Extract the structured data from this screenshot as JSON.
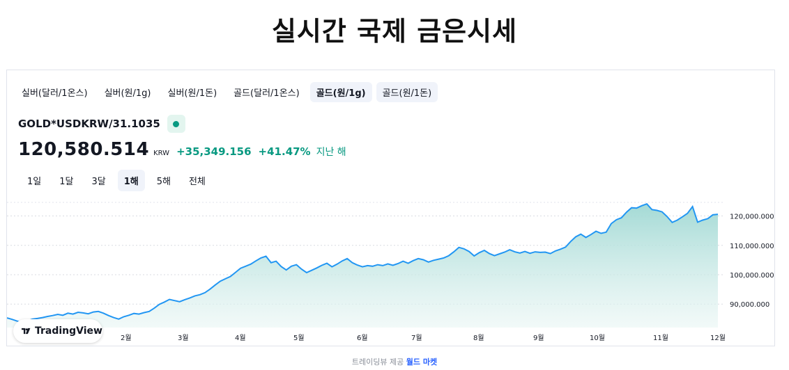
{
  "page": {
    "title": "실시간 국제 금은시세"
  },
  "tabs": [
    {
      "label": "실버(달러/1온스)"
    },
    {
      "label": "실버(원/1g)"
    },
    {
      "label": "실버(원/1돈)"
    },
    {
      "label": "골드(달러/1온스)"
    },
    {
      "label": "골드(원/1g)"
    },
    {
      "label": "골드(원/1돈)"
    }
  ],
  "active_tab": "골드(원/1g)",
  "symbol": "GOLD*USDKRW/31.1035",
  "price": {
    "value": "120,580.514",
    "currency": "KRW",
    "change": "+35,349.156",
    "change_pct": "+41.47%",
    "period": "지난 해"
  },
  "ranges": [
    {
      "label": "1일"
    },
    {
      "label": "1달"
    },
    {
      "label": "3달"
    },
    {
      "label": "1해"
    },
    {
      "label": "5해"
    },
    {
      "label": "전체"
    }
  ],
  "active_range": "1해",
  "colors": {
    "line": "#2196f3",
    "positive": "#089981",
    "fill_top": "#9fd8d3",
    "fill_bottom": "#e9f6f4"
  },
  "chart_data": {
    "type": "area",
    "x_tick_labels": [
      "2월",
      "3월",
      "4월",
      "5월",
      "6월",
      "7월",
      "8월",
      "9월",
      "10월",
      "11월",
      "12월"
    ],
    "y_tick_labels": [
      "90,000.000",
      "100,000.000",
      "110,000.000",
      "120,000.000"
    ],
    "y_ticks": [
      90000,
      100000,
      110000,
      120000
    ],
    "ylim": [
      82000,
      127000
    ],
    "grid": true,
    "series": [
      {
        "values": [
          85300,
          84800,
          84200,
          83800,
          84300,
          84900,
          85100,
          85400,
          85800,
          86100,
          86500,
          86200,
          86900,
          86600,
          87200,
          87000,
          86700,
          87300,
          87500,
          86900,
          86100,
          85400,
          84900,
          85700,
          86200,
          86800,
          86600,
          87100,
          87500,
          88600,
          89900,
          90700,
          91600,
          91200,
          90800,
          91500,
          92100,
          92800,
          93200,
          93900,
          95100,
          96500,
          97800,
          98600,
          99400,
          100800,
          102200,
          102900,
          103600,
          104700,
          105700,
          106300,
          104100,
          104600,
          102800,
          101600,
          102900,
          103400,
          101900,
          100700,
          101500,
          102300,
          103200,
          103900,
          102700,
          103600,
          104700,
          105500,
          104100,
          103300,
          102700,
          103100,
          102900,
          103400,
          103100,
          103700,
          103200,
          103800,
          104600,
          103900,
          104800,
          105500,
          105100,
          104300,
          104900,
          105300,
          105700,
          106500,
          107800,
          109300,
          108800,
          107900,
          106400,
          107500,
          108300,
          107200,
          106500,
          107100,
          107700,
          108500,
          107800,
          107400,
          107900,
          107300,
          107800,
          107600,
          107700,
          107200,
          108100,
          108700,
          109400,
          111300,
          112900,
          113800,
          112700,
          113700,
          114800,
          114100,
          114500,
          117400,
          118700,
          119400,
          121300,
          122800,
          122700,
          123500,
          124100,
          122200,
          121900,
          121400,
          119800,
          117800,
          118600,
          119700,
          120900,
          123200,
          117900,
          118600,
          119100,
          120400,
          120580
        ]
      }
    ]
  },
  "watermark": {
    "label": "TradingView"
  },
  "footer": {
    "prefix": "트레이딩뷰 제공",
    "link": "월드 마켓"
  }
}
